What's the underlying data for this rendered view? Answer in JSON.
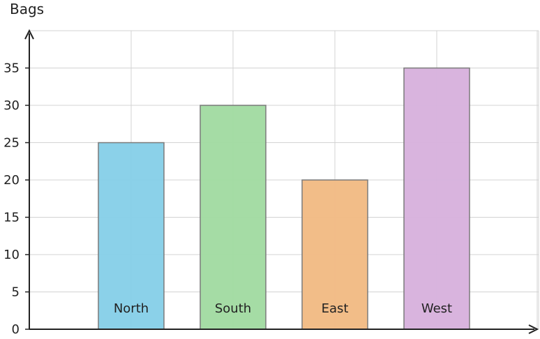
{
  "chart_data": {
    "type": "bar",
    "ylabel": "Bags",
    "xlabel": "",
    "ylim": [
      0,
      40
    ],
    "yticks": [
      0,
      5,
      10,
      15,
      20,
      25,
      30,
      35
    ],
    "grid": true,
    "categories": [
      "North",
      "South",
      "East",
      "West"
    ],
    "values": [
      25,
      30,
      20,
      35
    ],
    "colors": [
      "#87d0e8",
      "#a2dba2",
      "#f2bb84",
      "#d8b2dd"
    ],
    "bar_edge_color": "#7a7a7a",
    "axis_color": "#222222",
    "grid_color": "#d3d3d3"
  }
}
